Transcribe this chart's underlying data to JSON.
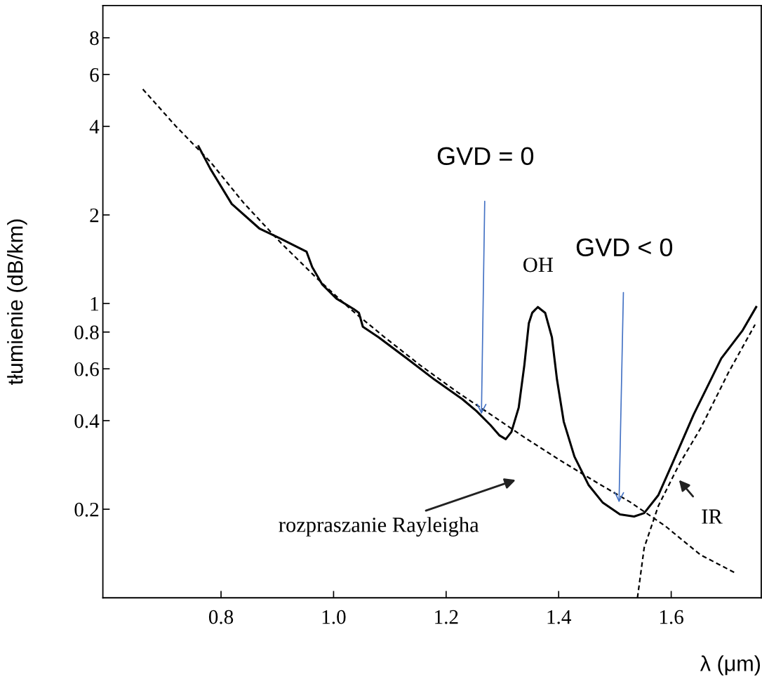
{
  "chart_data": {
    "type": "line",
    "xlabel": "λ (μm)",
    "ylabel": "tłumienie (dB/km)",
    "log": "y",
    "xlim": [
      0.59,
      1.76
    ],
    "ylim": [
      0.1,
      10.3
    ],
    "xticks": [
      0.8,
      {
        "value": 1.0,
        "label": "1.0"
      },
      1.2,
      1.4,
      1.6
    ],
    "yticks": [
      0.2,
      0.4,
      0.6,
      0.8,
      {
        "value": 1,
        "label": "1"
      },
      2,
      4,
      6,
      8
    ],
    "grid": false,
    "legend": false,
    "series": [
      {
        "color": "#000000",
        "line_style": "solid",
        "x": [
          0.76,
          0.781,
          0.819,
          0.868,
          0.906,
          0.937,
          0.952,
          0.962,
          0.98,
          1.005,
          1.036,
          1.045,
          1.052,
          1.08,
          1.13,
          1.179,
          1.229,
          1.254,
          1.279,
          1.295,
          1.306,
          1.316,
          1.329,
          1.339,
          1.347,
          1.353,
          1.363,
          1.376,
          1.388,
          1.397,
          1.409,
          1.428,
          1.453,
          1.478,
          1.509,
          1.534,
          1.552,
          1.577,
          1.602,
          1.64,
          1.689,
          1.727,
          1.751
        ],
        "values": [
          3.42,
          2.87,
          2.18,
          1.8,
          1.66,
          1.55,
          1.5,
          1.33,
          1.16,
          1.04,
          0.957,
          0.93,
          0.834,
          0.768,
          0.651,
          0.552,
          0.473,
          0.431,
          0.386,
          0.356,
          0.346,
          0.366,
          0.443,
          0.617,
          0.857,
          0.93,
          0.973,
          0.93,
          0.768,
          0.552,
          0.397,
          0.302,
          0.242,
          0.211,
          0.192,
          0.189,
          0.194,
          0.223,
          0.286,
          0.42,
          0.651,
          0.811,
          0.973
        ]
      },
      {
        "color": "#000000",
        "line_style": "dashed",
        "x": [
          0.661,
          0.72,
          0.781,
          0.84,
          0.906,
          0.97,
          1.03,
          1.09,
          1.154,
          1.22,
          1.279,
          1.34,
          1.403,
          1.47,
          1.528,
          1.59,
          1.652,
          1.712
        ],
        "values": [
          5.35,
          4.0,
          3.03,
          2.2,
          1.61,
          1.22,
          0.957,
          0.77,
          0.617,
          0.5,
          0.42,
          0.35,
          0.293,
          0.245,
          0.211,
          0.175,
          0.14,
          0.122
        ]
      },
      {
        "color": "#000000",
        "line_style": "dashed",
        "x": [
          1.54,
          1.552,
          1.577,
          1.615,
          1.652,
          1.702,
          1.749
        ],
        "values": [
          0.1,
          0.148,
          0.205,
          0.286,
          0.376,
          0.584,
          0.848
        ]
      }
    ],
    "annotations": [
      "GVD = 0",
      "GVD < 0",
      "OH",
      "rozpraszanie Rayleigha",
      "IR"
    ]
  }
}
